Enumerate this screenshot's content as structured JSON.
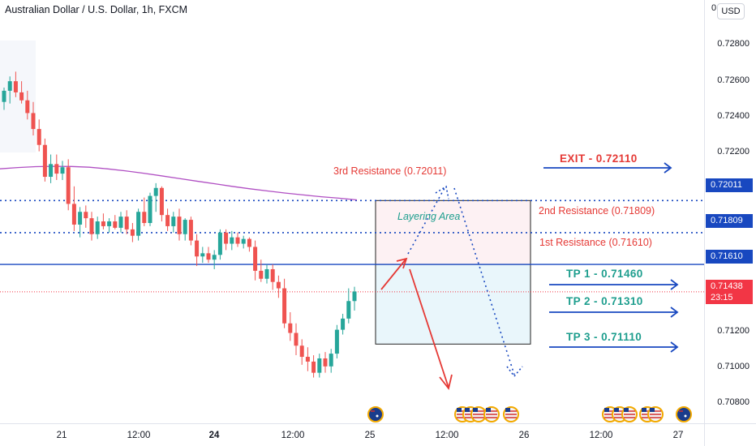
{
  "header": {
    "title": "Australian Dollar / U.S. Dollar, 1h, FXCM",
    "currency_button": "USD"
  },
  "price_axis": {
    "top_partial": "0",
    "ticks": [
      "0.72800",
      "0.72600",
      "0.72400",
      "0.72200",
      "0.71200",
      "0.71000",
      "0.70800"
    ],
    "tags": {
      "r3": "0.72011",
      "r2": "0.71809",
      "r1": "0.71610",
      "current": "0.71438",
      "countdown": "23:15"
    }
  },
  "time_axis": {
    "ticks": [
      {
        "label": "21",
        "bold": false
      },
      {
        "label": "12:00",
        "bold": false
      },
      {
        "label": "24",
        "bold": true
      },
      {
        "label": "12:00",
        "bold": false
      },
      {
        "label": "25",
        "bold": false
      },
      {
        "label": "12:00",
        "bold": false
      },
      {
        "label": "26",
        "bold": false
      },
      {
        "label": "12:00",
        "bold": false
      },
      {
        "label": "27",
        "bold": false
      }
    ]
  },
  "annotations": {
    "r3_label": "3rd Resistance (0.72011)",
    "r2_label": "2nd Resistance (0.71809)",
    "r1_label": "1st Resistance (0.71610)",
    "layering_label": "Layering Area",
    "exit_label": "EXIT - 0.72110",
    "tp1_label": "TP 1 - 0.71460",
    "tp2_label": "TP 2 - 0.71310",
    "tp3_label": "TP 3 - 0.71110"
  },
  "colors": {
    "bull": "#26a69a",
    "bear": "#ef5350",
    "ma": "#b04fc3",
    "blue": "#1848c0",
    "red_arrow": "#e53935",
    "current_price": "#f23645"
  },
  "chart_data": {
    "type": "candlestick",
    "symbol": "Australian Dollar / U.S. Dollar",
    "timeframe": "1h",
    "ylim": [
      0.7074,
      0.73
    ],
    "levels": {
      "third_resistance": 0.72011,
      "second_resistance": 0.71809,
      "first_resistance": 0.7161,
      "current_price": 0.71438,
      "exit": 0.7211,
      "tp1": 0.7146,
      "tp2": 0.7131,
      "tp3": 0.7111
    },
    "zones": {
      "layering_area": [
        0.7161,
        0.72011
      ],
      "target_zone": [
        0.7111,
        0.7161
      ]
    },
    "candles": [
      [
        0.7263,
        0.7272,
        0.7258,
        0.727
      ],
      [
        0.727,
        0.7279,
        0.7262,
        0.7276
      ],
      [
        0.7276,
        0.7282,
        0.7266,
        0.7269
      ],
      [
        0.7269,
        0.7276,
        0.7262,
        0.7264
      ],
      [
        0.7264,
        0.727,
        0.7252,
        0.7256
      ],
      [
        0.7256,
        0.7263,
        0.7242,
        0.7246
      ],
      [
        0.7246,
        0.7252,
        0.7232,
        0.7236
      ],
      [
        0.7236,
        0.724,
        0.7213,
        0.7216
      ],
      [
        0.7216,
        0.723,
        0.7212,
        0.7224
      ],
      [
        0.7224,
        0.723,
        0.7214,
        0.7218
      ],
      [
        0.7218,
        0.7226,
        0.7214,
        0.7222
      ],
      [
        0.7222,
        0.7227,
        0.7195,
        0.7199
      ],
      [
        0.7199,
        0.721,
        0.7182,
        0.7186
      ],
      [
        0.7186,
        0.7197,
        0.7178,
        0.7194
      ],
      [
        0.7194,
        0.7198,
        0.7184,
        0.719
      ],
      [
        0.719,
        0.7194,
        0.7176,
        0.718
      ],
      [
        0.718,
        0.7191,
        0.7177,
        0.7188
      ],
      [
        0.7188,
        0.7193,
        0.7183,
        0.7185
      ],
      [
        0.7185,
        0.719,
        0.7181,
        0.7188
      ],
      [
        0.7188,
        0.7192,
        0.7183,
        0.7184
      ],
      [
        0.7184,
        0.7194,
        0.7181,
        0.7191
      ],
      [
        0.7191,
        0.7195,
        0.718,
        0.7183
      ],
      [
        0.7183,
        0.7187,
        0.7175,
        0.7179
      ],
      [
        0.7179,
        0.7196,
        0.7176,
        0.7194
      ],
      [
        0.7194,
        0.7203,
        0.7185,
        0.7187
      ],
      [
        0.7187,
        0.7206,
        0.7185,
        0.7204
      ],
      [
        0.7204,
        0.7212,
        0.7194,
        0.7209
      ],
      [
        0.7209,
        0.721,
        0.7188,
        0.7192
      ],
      [
        0.7192,
        0.7196,
        0.7182,
        0.7185
      ],
      [
        0.7185,
        0.7194,
        0.7181,
        0.7191
      ],
      [
        0.7191,
        0.7196,
        0.7176,
        0.718
      ],
      [
        0.718,
        0.719,
        0.7176,
        0.7189
      ],
      [
        0.7189,
        0.7191,
        0.7173,
        0.7176
      ],
      [
        0.7176,
        0.718,
        0.716,
        0.7166
      ],
      [
        0.7166,
        0.7172,
        0.7162,
        0.7168
      ],
      [
        0.7168,
        0.7172,
        0.7162,
        0.7164
      ],
      [
        0.7164,
        0.717,
        0.7158,
        0.7167
      ],
      [
        0.7167,
        0.7183,
        0.7164,
        0.7181
      ],
      [
        0.7181,
        0.7183,
        0.717,
        0.7174
      ],
      [
        0.7174,
        0.7182,
        0.717,
        0.7178
      ],
      [
        0.7178,
        0.7181,
        0.7172,
        0.7174
      ],
      [
        0.7174,
        0.7179,
        0.7171,
        0.7177
      ],
      [
        0.7177,
        0.7178,
        0.7169,
        0.7172
      ],
      [
        0.7172,
        0.7176,
        0.7151,
        0.7157
      ],
      [
        0.7157,
        0.7164,
        0.715,
        0.7152
      ],
      [
        0.7152,
        0.7161,
        0.7149,
        0.7158
      ],
      [
        0.7158,
        0.7161,
        0.7145,
        0.715
      ],
      [
        0.715,
        0.7154,
        0.714,
        0.7146
      ],
      [
        0.7146,
        0.7152,
        0.7121,
        0.7124
      ],
      [
        0.7124,
        0.7131,
        0.7113,
        0.7118
      ],
      [
        0.7118,
        0.7124,
        0.7104,
        0.711
      ],
      [
        0.711,
        0.7114,
        0.7098,
        0.7103
      ],
      [
        0.7103,
        0.7109,
        0.7094,
        0.71
      ],
      [
        0.71,
        0.7104,
        0.709,
        0.7093
      ],
      [
        0.7093,
        0.7105,
        0.709,
        0.7102
      ],
      [
        0.7102,
        0.7106,
        0.7093,
        0.7097
      ],
      [
        0.7097,
        0.7108,
        0.7093,
        0.7105
      ],
      [
        0.7105,
        0.7123,
        0.7102,
        0.712
      ],
      [
        0.712,
        0.713,
        0.7117,
        0.7127
      ],
      [
        0.7127,
        0.7146,
        0.7124,
        0.7138
      ],
      [
        0.7138,
        0.7147,
        0.7132,
        0.7144
      ]
    ],
    "moving_average": [
      0.7221,
      0.72218,
      0.72224,
      0.72226,
      0.72225,
      0.7222,
      0.7221,
      0.72198,
      0.72183,
      0.72167,
      0.7215,
      0.72133,
      0.72117,
      0.721,
      0.72085,
      0.72071,
      0.72058,
      0.72046,
      0.72035,
      0.72026,
      0.72015
    ]
  }
}
